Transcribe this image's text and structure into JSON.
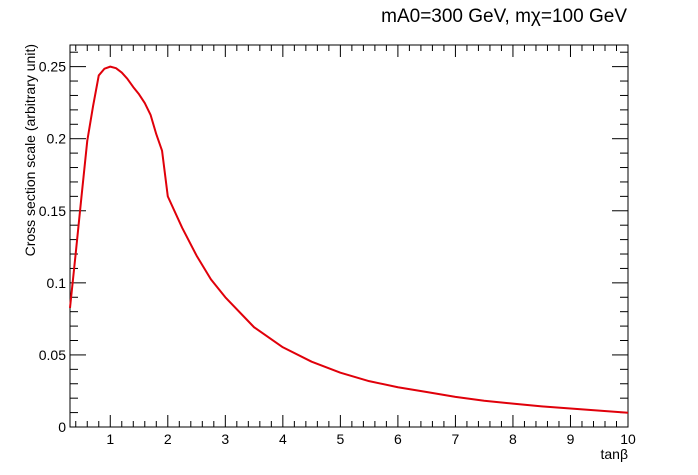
{
  "colors": {
    "curve": "#e0000a",
    "axis": "#000000",
    "background": "#ffffff"
  },
  "chart_data": {
    "type": "line",
    "title": "mA0=300 GeV, mχ=100 GeV",
    "xlabel": "tanβ",
    "ylabel": "Cross section scale (arbitrary unit)",
    "xlim": [
      0.3,
      10
    ],
    "ylim": [
      0,
      0.265
    ],
    "grid": false,
    "legend": "none",
    "x_ticks": [
      {
        "value": 1,
        "label": "1"
      },
      {
        "value": 2,
        "label": "2"
      },
      {
        "value": 3,
        "label": "3"
      },
      {
        "value": 4,
        "label": "4"
      },
      {
        "value": 5,
        "label": "5"
      },
      {
        "value": 6,
        "label": "6"
      },
      {
        "value": 7,
        "label": "7"
      },
      {
        "value": 8,
        "label": "8"
      },
      {
        "value": 9,
        "label": "9"
      },
      {
        "value": 10,
        "label": "10"
      }
    ],
    "y_ticks": [
      {
        "value": 0,
        "label": "0"
      },
      {
        "value": 0.05,
        "label": "0.05"
      },
      {
        "value": 0.1,
        "label": "0.1"
      },
      {
        "value": 0.15,
        "label": "0.15"
      },
      {
        "value": 0.2,
        "label": "0.2"
      },
      {
        "value": 0.25,
        "label": "0.25"
      }
    ],
    "series": [
      {
        "x": [
          0.3,
          0.4,
          0.5,
          0.6,
          0.7,
          0.8,
          0.9,
          1.0,
          1.1,
          1.2,
          1.3,
          1.4,
          1.5,
          1.6,
          1.7,
          1.8,
          1.9,
          2.0,
          2.25,
          2.5,
          2.75,
          3.0,
          3.5,
          4.0,
          4.5,
          5.0,
          5.5,
          6.0,
          6.5,
          7.0,
          7.5,
          8.0,
          8.5,
          9.0,
          9.5,
          10.0
        ],
        "y": [
          0.0826,
          0.1207,
          0.16,
          0.1985,
          0.2224,
          0.2439,
          0.2486,
          0.25,
          0.2489,
          0.2459,
          0.2414,
          0.2358,
          0.2308,
          0.2247,
          0.2166,
          0.2031,
          0.1917,
          0.16,
          0.1382,
          0.1189,
          0.1024,
          0.09,
          0.0692,
          0.0553,
          0.0453,
          0.0377,
          0.0318,
          0.0276,
          0.0243,
          0.0209,
          0.0182,
          0.0162,
          0.0143,
          0.0128,
          0.0114,
          0.0099
        ]
      }
    ]
  }
}
